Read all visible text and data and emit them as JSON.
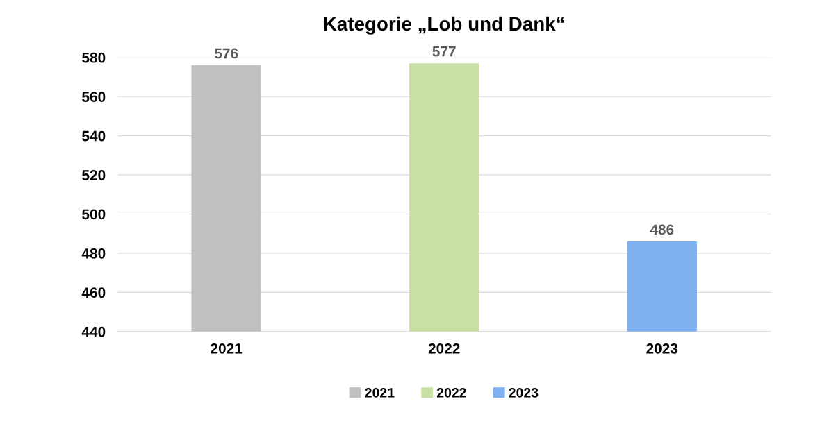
{
  "chart_data": {
    "type": "bar",
    "title": "Kategorie „Lob und Dank“",
    "categories": [
      "2021",
      "2022",
      "2023"
    ],
    "stacked": true,
    "series": [
      {
        "name": "2021",
        "color": "#c0c0c0",
        "values": [
          576,
          null,
          null
        ]
      },
      {
        "name": "2022",
        "color": "#c9dfa4",
        "values": [
          null,
          577,
          null
        ]
      },
      {
        "name": "2023",
        "color": "#7fb0f0",
        "values": [
          null,
          null,
          486
        ]
      }
    ],
    "ylim": [
      440,
      580
    ],
    "yticks": [
      440,
      460,
      480,
      500,
      520,
      540,
      560,
      580
    ],
    "grid": "y",
    "legend": "bottom",
    "data_labels": true
  }
}
